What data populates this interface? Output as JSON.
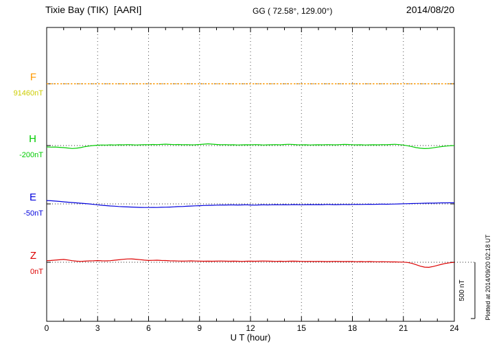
{
  "chart_data": {
    "type": "line",
    "title": "Tixie Bay (TIK)  [AARI]",
    "coords": "GG ( 72.58°, 129.00°)",
    "date": "2014/08/20",
    "xlabel": "U T (hour)",
    "x_range": [
      0,
      24
    ],
    "x_ticks": [
      0,
      3,
      6,
      9,
      12,
      15,
      18,
      21,
      24
    ],
    "x_minor_step": 1,
    "grid": "dotted vertical at major ticks",
    "scale_bar": {
      "label": "500 nT",
      "nT": 500
    },
    "plotted_at": "Plotted at 2014/09/20 02:18 UT",
    "series": [
      {
        "name": "F",
        "color": "#ff9900",
        "value_label": "91460nT",
        "value_color": "#cccc00",
        "baseline_nT": 91460,
        "style": "dotted",
        "offsets_nT": [
          0,
          0
        ]
      },
      {
        "name": "H",
        "color": "#00cc00",
        "value_label": "-200nT",
        "value_color": "#00cc00",
        "baseline_nT": -200,
        "style": "solid",
        "offsets_nT": [
          -12,
          -14,
          -13,
          -16,
          -18,
          -22,
          -26,
          -24,
          -18,
          -10,
          -4,
          0,
          3,
          5,
          4,
          6,
          5,
          7,
          6,
          8,
          7,
          5,
          6,
          8,
          7,
          9,
          8,
          10,
          12,
          10,
          8,
          9,
          7,
          8,
          6,
          7,
          9,
          12,
          15,
          12,
          9,
          7,
          8,
          6,
          7,
          5,
          6,
          7,
          6,
          8,
          7,
          5,
          6,
          7,
          8,
          6,
          9,
          11,
          9,
          7,
          6,
          7,
          5,
          6,
          7,
          6,
          8,
          7,
          6,
          8,
          10,
          9,
          7,
          6,
          7,
          5,
          6,
          7,
          6,
          8,
          7,
          9,
          11,
          8,
          4,
          -2,
          -10,
          -18,
          -24,
          -27,
          -25,
          -20,
          -14,
          -9,
          -5,
          -2,
          0
        ]
      },
      {
        "name": "E",
        "color": "#0000dd",
        "value_label": "-50nT",
        "value_color": "#0000dd",
        "baseline_nT": -50,
        "style": "solid",
        "offsets_nT": [
          30,
          28,
          25,
          22,
          18,
          15,
          12,
          9,
          6,
          3,
          0,
          -4,
          -8,
          -12,
          -15,
          -18,
          -20,
          -23,
          -25,
          -27,
          -28,
          -30,
          -31,
          -32,
          -32,
          -31,
          -32,
          -30,
          -29,
          -28,
          -26,
          -24,
          -23,
          -21,
          -19,
          -17,
          -16,
          -14,
          -13,
          -12,
          -11,
          -10,
          -10,
          -9,
          -9,
          -10,
          -9,
          -8,
          -10,
          -11,
          -9,
          -8,
          -9,
          -8,
          -7,
          -8,
          -7,
          -8,
          -6,
          -7,
          -8,
          -7,
          -6,
          -7,
          -6,
          -7,
          -5,
          -6,
          -7,
          -6,
          -5,
          -6,
          -5,
          -4,
          -5,
          -4,
          -3,
          -4,
          -3,
          -2,
          -3,
          -2,
          -1,
          0,
          1,
          2,
          3,
          4,
          5,
          6,
          7,
          7,
          8,
          9,
          9,
          10,
          10
        ]
      },
      {
        "name": "Z",
        "color": "#dd0000",
        "value_label": "0nT",
        "value_color": "#dd0000",
        "baseline_nT": 0,
        "style": "solid",
        "offsets_nT": [
          14,
          16,
          19,
          22,
          25,
          20,
          14,
          10,
          8,
          10,
          12,
          13,
          15,
          13,
          12,
          14,
          18,
          22,
          26,
          29,
          30,
          27,
          23,
          19,
          16,
          17,
          18,
          16,
          15,
          13,
          12,
          11,
          10,
          11,
          12,
          11,
          10,
          9,
          10,
          9,
          10,
          11,
          10,
          9,
          10,
          9,
          8,
          9,
          10,
          9,
          10,
          11,
          10,
          9,
          8,
          9,
          8,
          9,
          10,
          9,
          8,
          7,
          8,
          7,
          8,
          7,
          6,
          7,
          8,
          7,
          6,
          7,
          6,
          5,
          6,
          5,
          6,
          5,
          4,
          5,
          4,
          3,
          3,
          2,
          1,
          -2,
          -10,
          -22,
          -35,
          -43,
          -45,
          -38,
          -28,
          -18,
          -10,
          -4,
          -1
        ]
      }
    ]
  }
}
